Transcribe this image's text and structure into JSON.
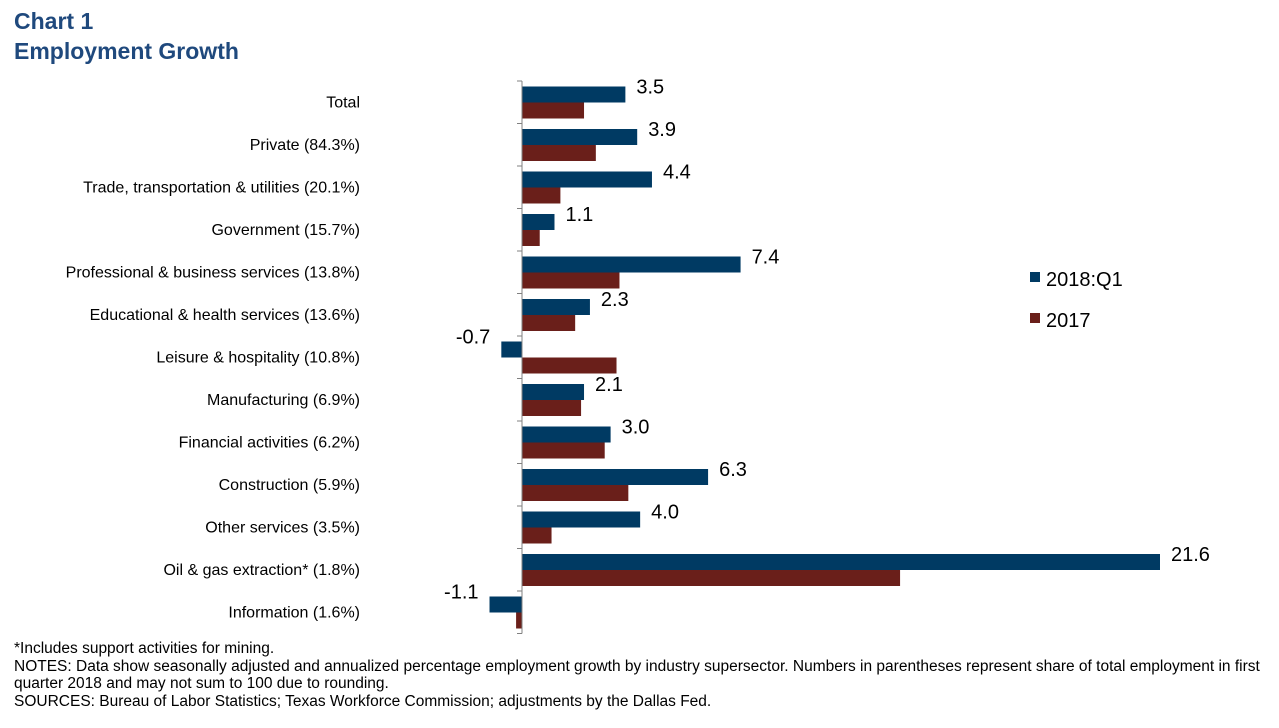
{
  "page": {
    "title_line1": "Chart 1",
    "title_line2": "Employment  Growth"
  },
  "chart_data": {
    "type": "bar",
    "orientation": "horizontal",
    "categories": [
      "Total",
      "Private (84.3%)",
      "Trade, transportation & utilities (20.1%)",
      "Government (15.7%)",
      "Professional & business services (13.8%)",
      "Educational & health services (13.6%)",
      "Leisure & hospitality (10.8%)",
      "Manufacturing (6.9%)",
      "Financial activities (6.2%)",
      "Construction (5.9%)",
      "Other services (3.5%)",
      "Oil & gas extraction* (1.8%)",
      "Information (1.6%)"
    ],
    "series": [
      {
        "name": "2018:Q1",
        "color": "#003a63",
        "values": [
          3.5,
          3.9,
          4.4,
          1.1,
          7.4,
          2.3,
          -0.7,
          2.1,
          3.0,
          6.3,
          4.0,
          21.6,
          -1.1
        ],
        "labels": [
          "3.5",
          "3.9",
          "4.4",
          "1.1",
          "7.4",
          "2.3",
          "-0.7",
          "2.1",
          "3.0",
          "6.3",
          "4.0",
          "21.6",
          "-1.1"
        ]
      },
      {
        "name": "2017",
        "color": "#6a1f1a",
        "values": [
          2.1,
          2.5,
          1.3,
          0.6,
          3.3,
          1.8,
          3.2,
          2.0,
          2.8,
          3.6,
          1.0,
          12.8,
          -0.2
        ]
      }
    ],
    "xlim": [
      -1.1,
      21.6
    ],
    "legend_position": "right",
    "grid": false
  },
  "notes": {
    "footnote": "*Includes support activities for mining.",
    "notes": "NOTES: Data show seasonally adjusted and annualized percentage employment growth by industry supersector. Numbers in parentheses represent share of total employment in first quarter 2018 and may not sum to 100 due to rounding.",
    "sources": "SOURCES: Bureau of Labor Statistics; Texas Workforce Commission; adjustments by the Dallas Fed."
  }
}
